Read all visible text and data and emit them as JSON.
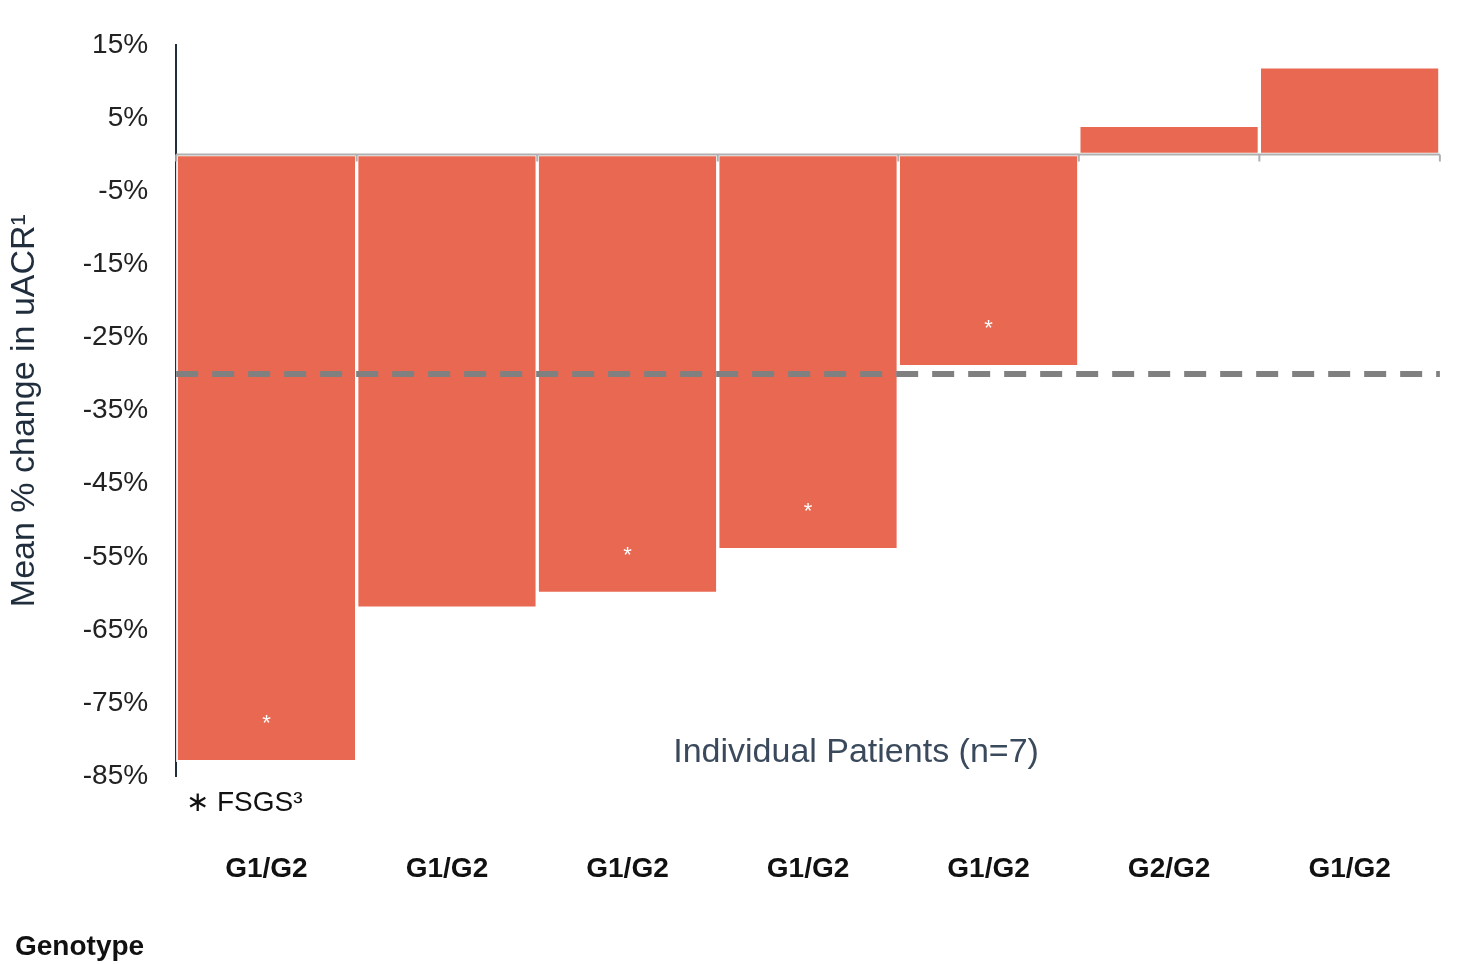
{
  "chart_data": {
    "type": "bar",
    "categories": [
      "G1/G2",
      "G1/G2",
      "G1/G2",
      "G1/G2",
      "G1/G2",
      "G2/G2",
      "G1/G2"
    ],
    "values": [
      -83,
      -62,
      -60,
      -54,
      -29,
      4,
      12
    ],
    "value_labels": [
      "*",
      null,
      "*",
      "*",
      "*",
      null,
      null
    ],
    "color": "#e86852",
    "ylim": [
      -85,
      15
    ],
    "yticks": [
      {
        "value": 15,
        "label": "15%"
      },
      {
        "value": 5,
        "label": "5%"
      },
      {
        "value": -5,
        "label": "-5%"
      },
      {
        "value": -15,
        "label": "-15%"
      },
      {
        "value": -25,
        "label": "-25%"
      },
      {
        "value": -35,
        "label": "-35%"
      },
      {
        "value": -45,
        "label": "-45%"
      },
      {
        "value": -55,
        "label": "-55%"
      },
      {
        "value": -65,
        "label": "-65%"
      },
      {
        "value": -75,
        "label": "-75%"
      },
      {
        "value": -85,
        "label": "-85%"
      }
    ],
    "ylabel": "Mean % change in uACR¹",
    "xlabel": "Individual Patients (n=7)",
    "ref_lines": [
      {
        "axis": "y",
        "value": -30,
        "color": "#808080",
        "line_style": "dashed"
      }
    ],
    "annotations": [
      "Genotype",
      "∗ FSGS³"
    ],
    "grid": false,
    "legend": false
  }
}
